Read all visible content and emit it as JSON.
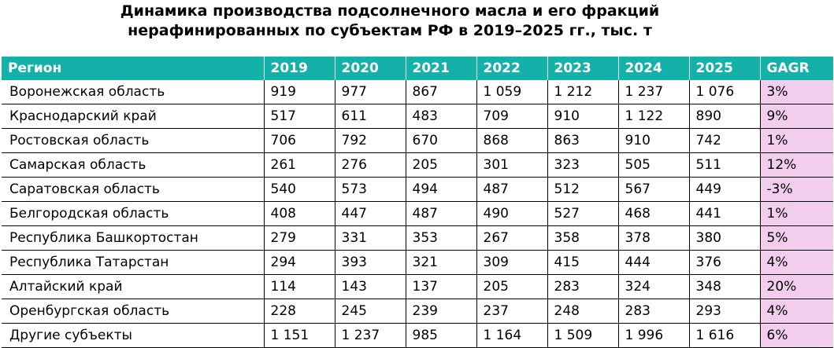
{
  "chart_data": {
    "type": "table",
    "title_line1": "Динамика производства подсолнечного масла и его фракций",
    "title_line2": "нерафинированных по субъектам РФ в 2019–2025 гг., тыс. т",
    "header_color": "#13b1a7",
    "gagr_color": "#f2cdee",
    "columns": [
      "Регион",
      "2019",
      "2020",
      "2021",
      "2022",
      "2023",
      "2024",
      "2025",
      "GAGR"
    ],
    "rows": [
      {
        "region": "Воронежская область",
        "values": [
          "919",
          "977",
          "867",
          "1 059",
          "1 212",
          "1 237",
          "1 076"
        ],
        "gagr": "3%"
      },
      {
        "region": "Краснодарский край",
        "values": [
          "517",
          "611",
          "483",
          "709",
          "910",
          "1 122",
          "890"
        ],
        "gagr": "9%"
      },
      {
        "region": "Ростовская область",
        "values": [
          "706",
          "792",
          "670",
          "868",
          "863",
          "910",
          "742"
        ],
        "gagr": "1%"
      },
      {
        "region": "Самарская область",
        "values": [
          "261",
          "276",
          "205",
          "301",
          "323",
          "505",
          "511"
        ],
        "gagr": "12%"
      },
      {
        "region": "Саратовская область",
        "values": [
          "540",
          "573",
          "494",
          "487",
          "512",
          "567",
          "449"
        ],
        "gagr": "-3%"
      },
      {
        "region": "Белгородская область",
        "values": [
          "408",
          "447",
          "487",
          "490",
          "527",
          "468",
          "441"
        ],
        "gagr": "1%"
      },
      {
        "region": "Республика Башкортостан",
        "values": [
          "279",
          "331",
          "353",
          "267",
          "358",
          "378",
          "380"
        ],
        "gagr": "5%"
      },
      {
        "region": "Республика Татарстан",
        "values": [
          "294",
          "393",
          "321",
          "309",
          "415",
          "444",
          "376"
        ],
        "gagr": "4%"
      },
      {
        "region": "Алтайский край",
        "values": [
          "114",
          "143",
          "137",
          "205",
          "283",
          "324",
          "348"
        ],
        "gagr": "20%"
      },
      {
        "region": "Оренбургская область",
        "values": [
          "228",
          "245",
          "239",
          "237",
          "248",
          "283",
          "293"
        ],
        "gagr": "4%"
      },
      {
        "region": "Другие субъекты",
        "values": [
          "1 151",
          "1 237",
          "985",
          "1 164",
          "1 509",
          "1 996",
          "1 616"
        ],
        "gagr": "6%"
      }
    ]
  }
}
